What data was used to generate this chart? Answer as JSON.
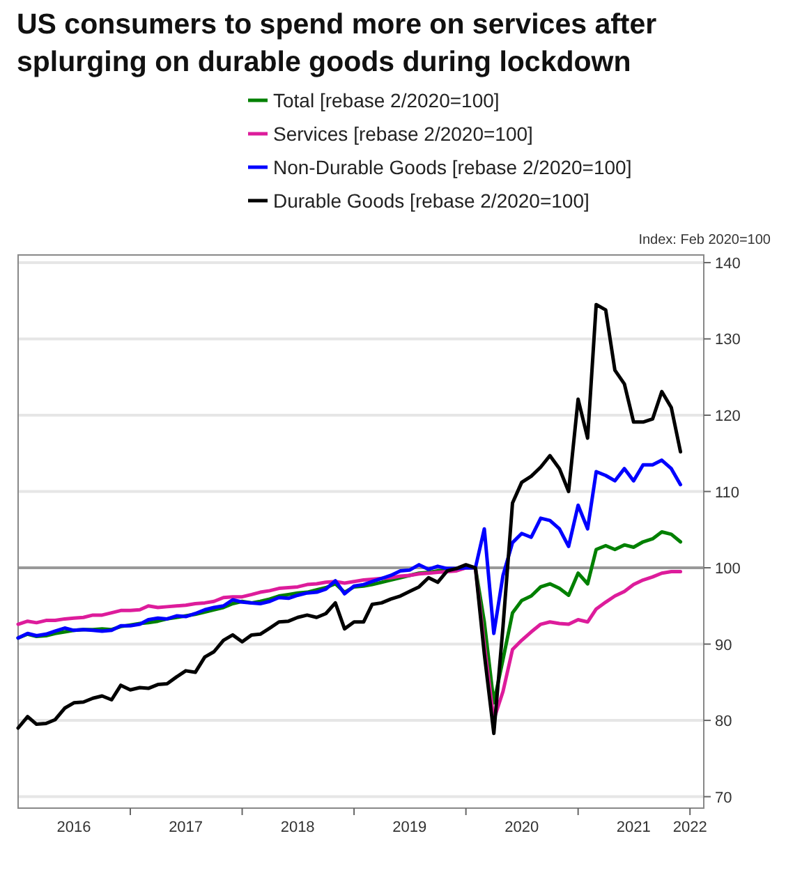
{
  "chart_data": {
    "type": "line",
    "title": "US consumers to spend more on services after splurging on durable goods during lockdown",
    "x": [
      "2016-01",
      "2016-02",
      "2016-03",
      "2016-04",
      "2016-05",
      "2016-06",
      "2016-07",
      "2016-08",
      "2016-09",
      "2016-10",
      "2016-11",
      "2016-12",
      "2017-01",
      "2017-02",
      "2017-03",
      "2017-04",
      "2017-05",
      "2017-06",
      "2017-07",
      "2017-08",
      "2017-09",
      "2017-10",
      "2017-11",
      "2017-12",
      "2018-01",
      "2018-02",
      "2018-03",
      "2018-04",
      "2018-05",
      "2018-06",
      "2018-07",
      "2018-08",
      "2018-09",
      "2018-10",
      "2018-11",
      "2018-12",
      "2019-01",
      "2019-02",
      "2019-03",
      "2019-04",
      "2019-05",
      "2019-06",
      "2019-07",
      "2019-08",
      "2019-09",
      "2019-10",
      "2019-11",
      "2019-12",
      "2020-01",
      "2020-02",
      "2020-03",
      "2020-04",
      "2020-05",
      "2020-06",
      "2020-07",
      "2020-08",
      "2020-09",
      "2020-10",
      "2020-11",
      "2020-12",
      "2021-01",
      "2021-02",
      "2021-03",
      "2021-04",
      "2021-05",
      "2021-06",
      "2021-07",
      "2021-08",
      "2021-09",
      "2021-10",
      "2021-11",
      "2021-12"
    ],
    "series": [
      {
        "name": "Total [rebase 2/2020=100]",
        "color": "#008000",
        "values": [
          90.8,
          91.3,
          91.0,
          91.1,
          91.4,
          91.6,
          91.8,
          91.9,
          91.9,
          92.0,
          91.9,
          92.3,
          92.5,
          92.7,
          92.8,
          93.0,
          93.3,
          93.5,
          93.7,
          93.9,
          94.2,
          94.5,
          94.8,
          95.3,
          95.6,
          95.4,
          95.6,
          95.9,
          96.3,
          96.5,
          96.7,
          96.8,
          97.1,
          97.4,
          97.9,
          96.8,
          97.5,
          97.6,
          97.8,
          98.1,
          98.4,
          98.7,
          99.0,
          99.3,
          99.4,
          99.6,
          99.7,
          99.8,
          100,
          100,
          92.9,
          82.3,
          88.0,
          94.1,
          95.7,
          96.3,
          97.5,
          97.9,
          97.3,
          96.4,
          99.3,
          97.9,
          102.4,
          102.9,
          102.4,
          103.0,
          102.7,
          103.4,
          103.8,
          104.7,
          104.4,
          103.4
        ]
      },
      {
        "name": "Services [rebase 2/2020=100]",
        "color": "#dd1c9b",
        "values": [
          92.6,
          93.0,
          92.8,
          93.1,
          93.1,
          93.3,
          93.4,
          93.5,
          93.8,
          93.8,
          94.1,
          94.4,
          94.4,
          94.5,
          95.0,
          94.8,
          94.9,
          95.0,
          95.1,
          95.3,
          95.4,
          95.6,
          96.1,
          96.2,
          96.2,
          96.5,
          96.8,
          97.0,
          97.3,
          97.4,
          97.5,
          97.8,
          97.9,
          98.1,
          98.2,
          98.0,
          98.2,
          98.4,
          98.5,
          98.6,
          98.7,
          98.9,
          99.0,
          99.2,
          99.3,
          99.4,
          99.5,
          99.6,
          100,
          100,
          89.9,
          80.1,
          83.8,
          89.3,
          90.5,
          91.6,
          92.6,
          92.9,
          92.7,
          92.6,
          93.2,
          92.9,
          94.6,
          95.5,
          96.3,
          96.9,
          97.8,
          98.4,
          98.8,
          99.3,
          99.5,
          99.5
        ]
      },
      {
        "name": "Non-Durable Goods [rebase 2/2020=100]",
        "color": "#0000ff",
        "values": [
          90.8,
          91.4,
          91.1,
          91.3,
          91.7,
          92.1,
          91.8,
          91.9,
          91.8,
          91.7,
          91.8,
          92.4,
          92.4,
          92.6,
          93.2,
          93.4,
          93.3,
          93.7,
          93.6,
          94.0,
          94.5,
          94.8,
          95.0,
          95.8,
          95.5,
          95.4,
          95.3,
          95.6,
          96.1,
          96.0,
          96.4,
          96.7,
          96.8,
          97.2,
          98.3,
          96.6,
          97.6,
          97.8,
          98.2,
          98.6,
          99.0,
          99.6,
          99.7,
          100.4,
          99.8,
          100.2,
          99.9,
          99.9,
          100,
          100,
          105.1,
          91.4,
          99.0,
          103.3,
          104.5,
          104.0,
          106.5,
          106.2,
          105.1,
          102.8,
          108.2,
          105.1,
          112.6,
          112.1,
          111.4,
          113.0,
          111.4,
          113.5,
          113.5,
          114.1,
          113.0,
          110.9
        ]
      },
      {
        "name": "Durable Goods [rebase 2/2020=100]",
        "color": "#000000",
        "values": [
          79.0,
          80.5,
          79.5,
          79.6,
          80.1,
          81.6,
          82.3,
          82.4,
          82.9,
          83.2,
          82.7,
          84.6,
          84.0,
          84.3,
          84.2,
          84.7,
          84.8,
          85.7,
          86.5,
          86.3,
          88.3,
          89.0,
          90.5,
          91.2,
          90.3,
          91.2,
          91.3,
          92.1,
          92.9,
          93.0,
          93.5,
          93.8,
          93.5,
          94.0,
          95.4,
          92.0,
          92.9,
          92.9,
          95.2,
          95.4,
          95.9,
          96.3,
          96.9,
          97.5,
          98.7,
          98.1,
          99.6,
          99.9,
          100.4,
          100,
          88.7,
          78.3,
          92.3,
          108.5,
          111.2,
          112.0,
          113.2,
          114.7,
          113.0,
          110.0,
          122.1,
          117.0,
          134.5,
          133.8,
          125.9,
          124.1,
          119.1,
          119.1,
          119.5,
          123.1,
          121.0,
          115.2
        ]
      }
    ],
    "xlim": [
      "2016-01-01",
      "2022-02-15"
    ],
    "xticks": [
      {
        "value": "2016-07-01",
        "label": "2016"
      },
      {
        "value": "2017-07-01",
        "label": "2017"
      },
      {
        "value": "2018-07-01",
        "label": "2018"
      },
      {
        "value": "2019-07-01",
        "label": "2019"
      },
      {
        "value": "2020-07-01",
        "label": "2020"
      },
      {
        "value": "2021-07-01",
        "label": "2021"
      },
      {
        "value": "2017-01-01",
        "label": null
      },
      {
        "value": "2018-01-01",
        "label": null
      },
      {
        "value": "2019-01-01",
        "label": null
      },
      {
        "value": "2020-01-01",
        "label": null
      },
      {
        "value": "2021-01-01",
        "label": null
      },
      {
        "value": "2022-01-01",
        "label": "2022"
      }
    ],
    "ylim": [
      68.5,
      141
    ],
    "yticks": [
      70,
      80,
      90,
      100,
      110,
      120,
      130,
      140
    ],
    "grid": "y",
    "legend": "top",
    "ref_lines": [
      {
        "axis": "y",
        "value": 100,
        "color": "#999999"
      }
    ],
    "annotations": [
      "Index: Feb 2020=100"
    ]
  }
}
